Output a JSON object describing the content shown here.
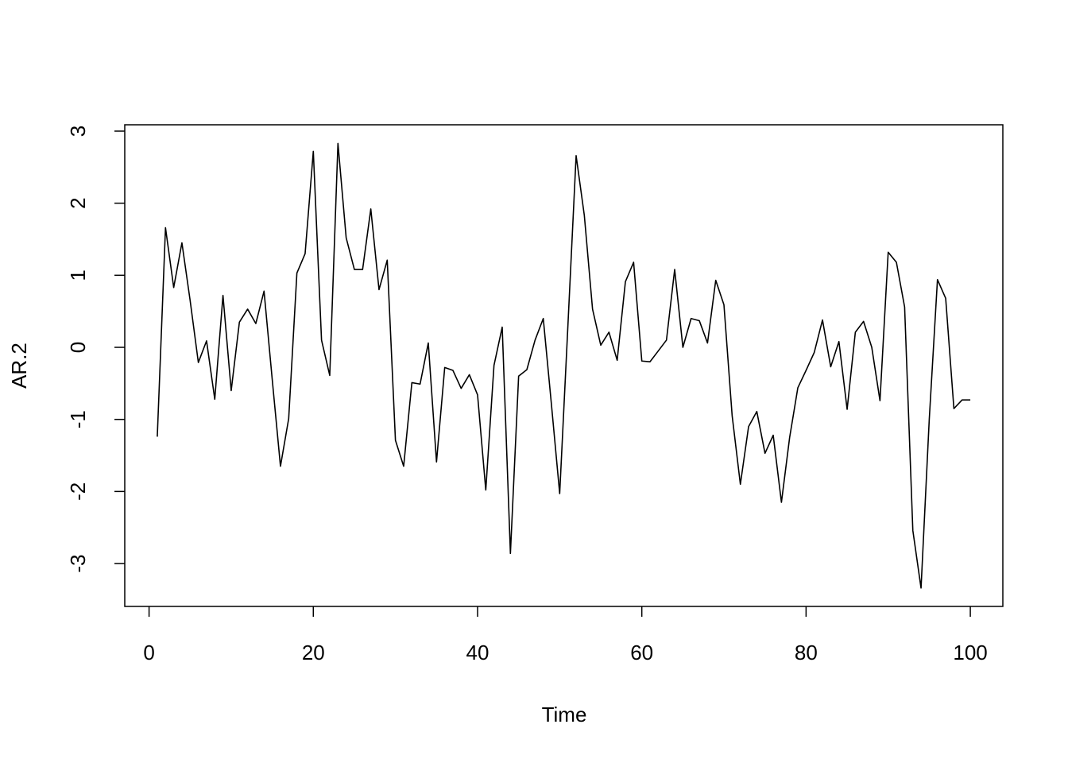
{
  "chart_data": {
    "type": "line",
    "x_label": "Time",
    "y_label": "AR.2",
    "x": [
      1,
      2,
      3,
      4,
      5,
      6,
      7,
      8,
      9,
      10,
      11,
      12,
      13,
      14,
      15,
      16,
      17,
      18,
      19,
      20,
      21,
      22,
      23,
      24,
      25,
      26,
      27,
      28,
      29,
      30,
      31,
      32,
      33,
      34,
      35,
      36,
      37,
      38,
      39,
      40,
      41,
      42,
      43,
      44,
      45,
      46,
      47,
      48,
      49,
      50,
      51,
      52,
      53,
      54,
      55,
      56,
      57,
      58,
      59,
      60,
      61,
      62,
      63,
      64,
      65,
      66,
      67,
      68,
      69,
      70,
      71,
      72,
      73,
      74,
      75,
      76,
      77,
      78,
      79,
      80,
      81,
      82,
      83,
      84,
      85,
      86,
      87,
      88,
      89,
      90,
      91,
      92,
      93,
      94,
      95,
      96,
      97,
      98,
      99,
      100
    ],
    "series": [
      {
        "color": "#000000",
        "values": [
          -1.24,
          1.66,
          0.83,
          1.45,
          0.65,
          -0.21,
          0.09,
          -0.72,
          0.72,
          -0.6,
          0.35,
          0.53,
          0.33,
          0.78,
          -0.45,
          -1.65,
          -0.99,
          1.03,
          1.3,
          2.72,
          0.1,
          -0.39,
          2.83,
          1.52,
          1.08,
          1.08,
          1.92,
          0.8,
          1.21,
          -1.29,
          -1.65,
          -0.49,
          -0.51,
          0.06,
          -1.59,
          -0.28,
          -0.32,
          -0.57,
          -0.38,
          -0.66,
          -1.98,
          -0.25,
          0.28,
          -2.86,
          -0.4,
          -0.31,
          0.1,
          0.4,
          -0.8,
          -2.03,
          0.3,
          2.66,
          1.83,
          0.53,
          0.03,
          0.21,
          -0.18,
          0.91,
          1.18,
          -0.19,
          -0.2,
          -0.05,
          0.1,
          1.08,
          0.0,
          0.4,
          0.37,
          0.06,
          0.93,
          0.59,
          -0.95,
          -1.9,
          -1.1,
          -0.89,
          -1.47,
          -1.22,
          -2.15,
          -1.25,
          -0.56,
          -0.32,
          -0.07,
          0.38,
          -0.27,
          0.08,
          -0.86,
          0.21,
          0.36,
          0.0,
          -0.74,
          1.32,
          1.18,
          0.56,
          -2.54,
          -3.34,
          -1.0,
          0.94,
          0.68,
          -0.85,
          -0.73,
          -0.73
        ]
      }
    ],
    "xlim": [
      -2.96,
      103.96
    ],
    "ylim": [
      -3.595,
      3.088
    ],
    "xticks": [
      0,
      20,
      40,
      60,
      80,
      100
    ],
    "yticks": [
      -3,
      -2,
      -1,
      0,
      1,
      2,
      3
    ]
  }
}
